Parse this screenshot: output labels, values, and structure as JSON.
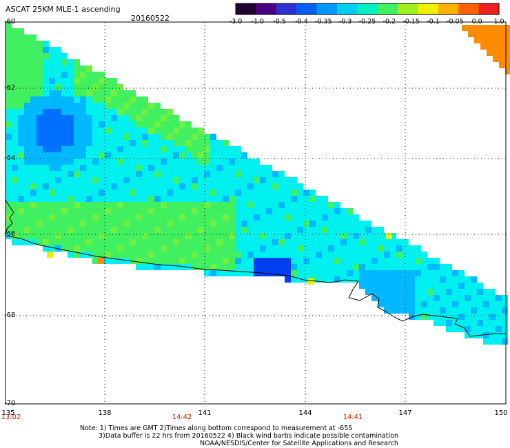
{
  "header": {
    "title": "ASCAT 25KM MLE-1 ascending",
    "date": "20160522"
  },
  "colorbar": {
    "ticks": [
      "-3.0",
      "-1.0",
      "-0.5",
      "-0.4",
      "-0.35",
      "-0.3",
      "-0.25",
      "-0.2",
      "-0.15",
      "-0.1",
      "-0.05",
      "0.0",
      "1.0"
    ],
    "colors": [
      "#200030",
      "#4a0080",
      "#3030d0",
      "#0060f0",
      "#0098ff",
      "#00d0f0",
      "#00f0c0",
      "#40f060",
      "#a0f020",
      "#f0f000",
      "#ffb000",
      "#ff6000",
      "#f02020"
    ]
  },
  "axes": {
    "lat_labels": [
      "-60",
      "-62",
      "-64",
      "-66",
      "-68",
      "-70"
    ],
    "lon_labels": [
      "135",
      "138",
      "141",
      "144",
      "147",
      "150"
    ],
    "time_labels": [
      "13:02",
      "14:42",
      "14:41"
    ]
  },
  "footer": {
    "note1": "Note: 1) Times are GMT 2)Times along bottom correspond to measurement at -65S",
    "note2": "3)Data buffer is 22 hrs from 20160522 4) Black wind barbs indicate possible contamination",
    "note3": "NOAA/NESDIS/Center for Satellite Applications and Research"
  },
  "map_colors": {
    "green": "#40f060",
    "lightgreen": "#70f040",
    "cyan": "#00f0f0",
    "teal": "#00d8e0",
    "lightblue": "#00b8ff",
    "blue": "#0070ff",
    "deepblue": "#0040f0",
    "orange": "#ff8c00",
    "yellow": "#e8f000"
  }
}
